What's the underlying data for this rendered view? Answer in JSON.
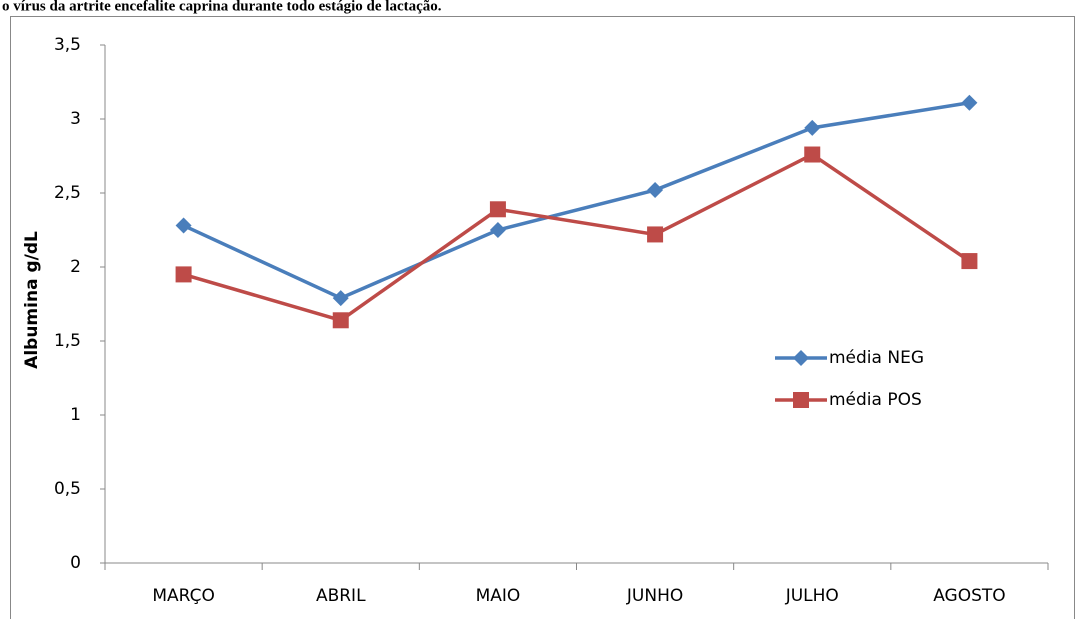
{
  "chart_data": {
    "type": "line",
    "title": "o vírus da artrite encefalite caprina durante todo estágio de lactação.",
    "y_label": "Albumina g/dL",
    "categories": [
      "MARÇO",
      "ABRIL",
      "MAIO",
      "JUNHO",
      "JULHO",
      "AGOSTO"
    ],
    "series": [
      {
        "name": "média NEG",
        "color": "#4a7ebb",
        "marker": "diamond",
        "values": [
          2.28,
          1.79,
          2.25,
          2.52,
          2.94,
          3.11
        ]
      },
      {
        "name": "média POS",
        "color": "#be4b48",
        "marker": "square",
        "values": [
          1.95,
          1.64,
          2.39,
          2.22,
          2.76,
          2.04
        ]
      }
    ],
    "ylim": [
      0,
      3.5
    ],
    "yticks": [
      0,
      {
        "value": 0.5,
        "label": "0,5"
      },
      1,
      {
        "value": 1.5,
        "label": "1,5"
      },
      2,
      {
        "value": 2.5,
        "label": "2,5"
      },
      3,
      {
        "value": 3.5,
        "label": "3,5"
      }
    ],
    "grid": false,
    "legend": "right"
  }
}
